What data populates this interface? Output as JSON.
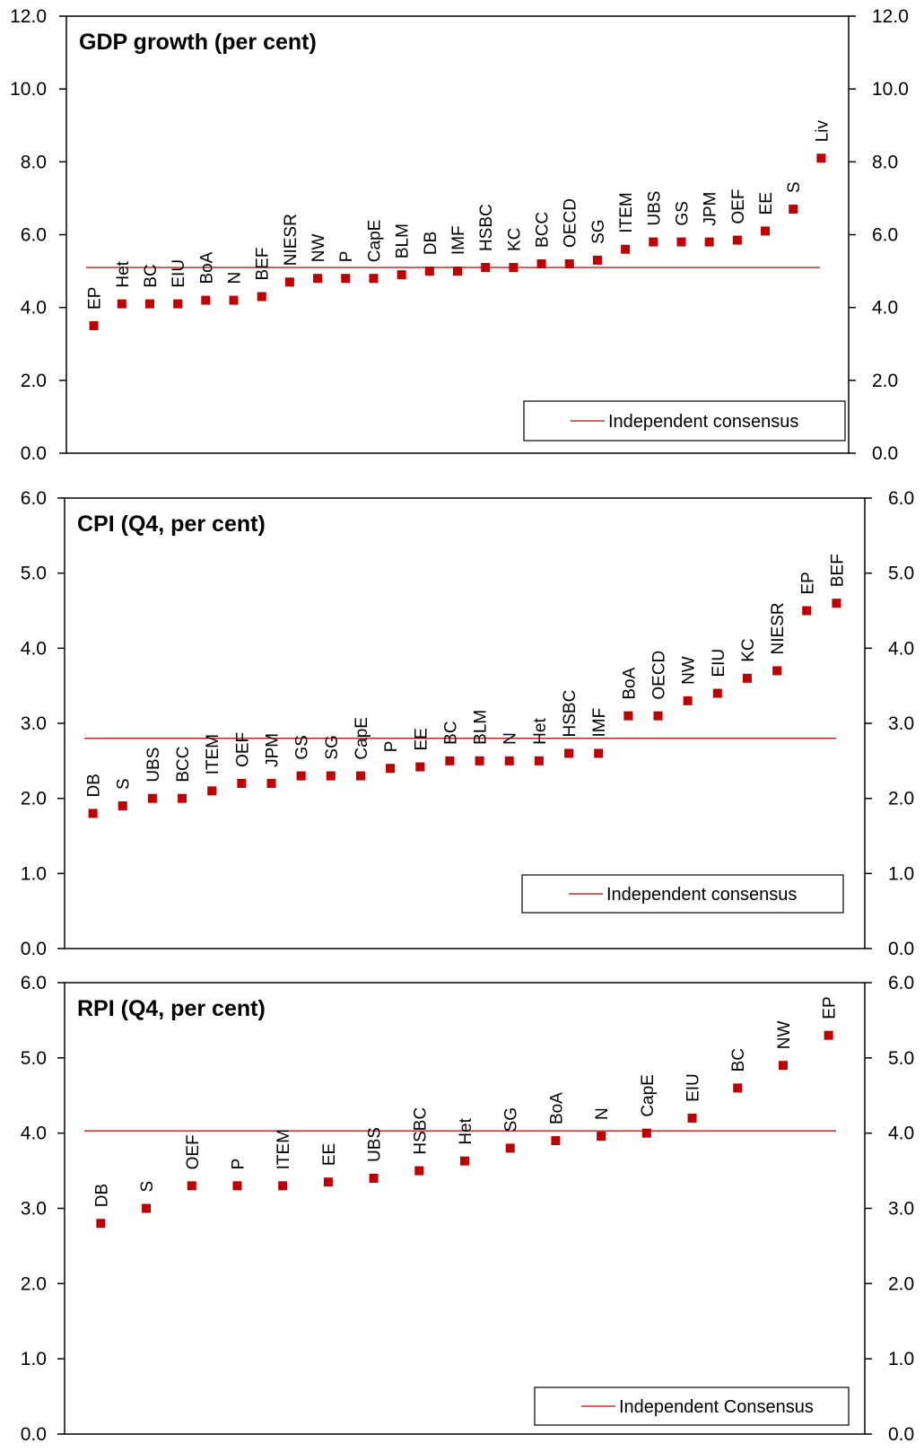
{
  "colors": {
    "marker": "#c00000",
    "consensus_line": "#c00000",
    "axis": "#000000"
  },
  "chart_data": [
    {
      "type": "scatter",
      "title": "GDP growth (per cent)",
      "ylim": [
        0,
        12
      ],
      "yticks": [
        "0.0",
        "2.0",
        "4.0",
        "6.0",
        "8.0",
        "10.0",
        "12.0"
      ],
      "grid": false,
      "legend_position": "bottom-right",
      "consensus": {
        "label": "Independent consensus",
        "value": 5.1
      },
      "categories": [
        "EP",
        "Het",
        "BC",
        "EIU",
        "BoA",
        "N",
        "BEF",
        "NIESR",
        "NW",
        "P",
        "CapE",
        "BLM",
        "DB",
        "IMF",
        "HSBC",
        "KC",
        "BCC",
        "OECD",
        "SG",
        "ITEM",
        "UBS",
        "GS",
        "JPM",
        "OEF",
        "EE",
        "S",
        "Liv"
      ],
      "values": [
        3.5,
        4.1,
        4.1,
        4.1,
        4.2,
        4.2,
        4.3,
        4.7,
        4.8,
        4.8,
        4.8,
        4.9,
        5.0,
        5.0,
        5.1,
        5.1,
        5.2,
        5.2,
        5.3,
        5.6,
        5.8,
        5.8,
        5.8,
        5.85,
        6.1,
        6.7,
        8.1
      ]
    },
    {
      "type": "scatter",
      "title": "CPI (Q4, per cent)",
      "ylim": [
        0,
        6
      ],
      "yticks": [
        "0.0",
        "1.0",
        "2.0",
        "3.0",
        "4.0",
        "5.0",
        "6.0"
      ],
      "grid": false,
      "legend_position": "bottom-right",
      "consensus": {
        "label": "Independent consensus",
        "value": 2.8
      },
      "categories": [
        "DB",
        "S",
        "UBS",
        "BCC",
        "ITEM",
        "OEF",
        "JPM",
        "GS",
        "SG",
        "CapE",
        "P",
        "EE",
        "BC",
        "BLM",
        "N",
        "Het",
        "HSBC",
        "IMF",
        "BoA",
        "OECD",
        "NW",
        "EIU",
        "KC",
        "NIESR",
        "EP",
        "BEF"
      ],
      "values": [
        1.8,
        1.9,
        2.0,
        2.0,
        2.1,
        2.2,
        2.2,
        2.3,
        2.3,
        2.3,
        2.4,
        2.42,
        2.5,
        2.5,
        2.5,
        2.5,
        2.6,
        2.6,
        3.1,
        3.1,
        3.3,
        3.4,
        3.6,
        3.7,
        4.5,
        4.6
      ]
    },
    {
      "type": "scatter",
      "title": "RPI (Q4, per cent)",
      "ylim": [
        0,
        6
      ],
      "yticks": [
        "0.0",
        "1.0",
        "2.0",
        "3.0",
        "4.0",
        "5.0",
        "6.0"
      ],
      "grid": false,
      "legend_position": "bottom-right",
      "consensus": {
        "label": "Independent Consensus",
        "value": 4.03
      },
      "categories": [
        "DB",
        "S",
        "OEF",
        "P",
        "ITEM",
        "EE",
        "UBS",
        "HSBC",
        "Het",
        "SG",
        "BoA",
        "N",
        "CapE",
        "EIU",
        "BC",
        "NW",
        "EP"
      ],
      "values": [
        2.8,
        3.0,
        3.3,
        3.3,
        3.3,
        3.35,
        3.4,
        3.5,
        3.63,
        3.8,
        3.9,
        3.96,
        4.0,
        4.2,
        4.6,
        4.9,
        5.3
      ]
    }
  ]
}
